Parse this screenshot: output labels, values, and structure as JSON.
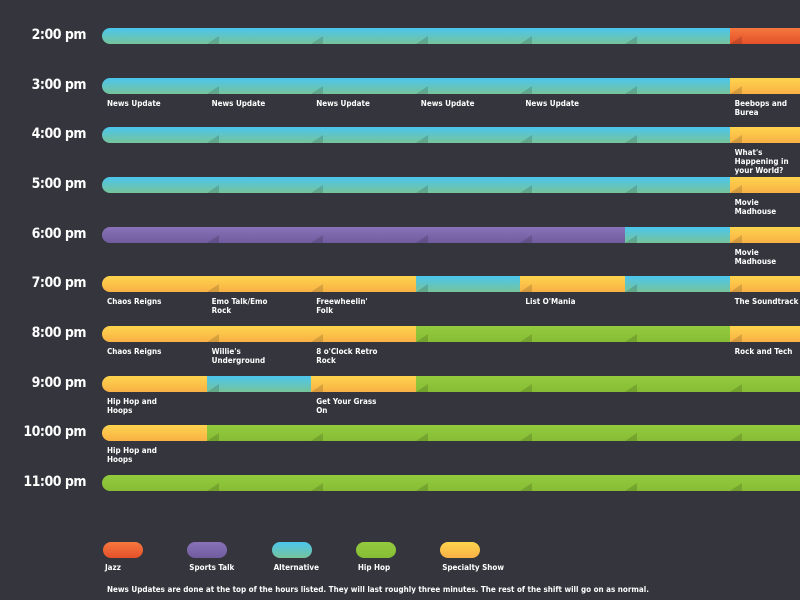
{
  "schedule": {
    "legend": [
      {
        "name": "Jazz",
        "colors": [
          "#f6783e",
          "#e4502a"
        ]
      },
      {
        "name": "Sports Talk",
        "colors": [
          "#8a72b8",
          "#6f5c9e"
        ]
      },
      {
        "name": "Alternative",
        "colors": [
          "#4cc6ee",
          "#76c49a"
        ]
      },
      {
        "name": "Hip Hop",
        "colors": [
          "#93cb3e",
          "#86bd35"
        ]
      },
      {
        "name": "Specialty Show",
        "colors": [
          "#ffd44e",
          "#f8b145"
        ]
      }
    ],
    "rows": [
      {
        "time": "2:00 pm",
        "slots": [
          {
            "genre": "Alternative"
          },
          {
            "genre": "Alternative"
          },
          {
            "genre": "Alternative"
          },
          {
            "genre": "Alternative"
          },
          {
            "genre": "Alternative"
          },
          {
            "genre": "Alternative"
          },
          {
            "genre": "Jazz"
          }
        ]
      },
      {
        "time": "3:00 pm",
        "slots": [
          {
            "genre": "Alternative",
            "label": "News Update"
          },
          {
            "genre": "Alternative",
            "label": "News Update"
          },
          {
            "genre": "Alternative",
            "label": "News Update"
          },
          {
            "genre": "Alternative",
            "label": "News Update"
          },
          {
            "genre": "Alternative",
            "label": "News Update"
          },
          {
            "genre": "Alternative"
          },
          {
            "genre": "Specialty Show",
            "label": "Beebops and Burea"
          }
        ]
      },
      {
        "time": "4:00 pm",
        "slots": [
          {
            "genre": "Alternative"
          },
          {
            "genre": "Alternative"
          },
          {
            "genre": "Alternative"
          },
          {
            "genre": "Alternative"
          },
          {
            "genre": "Alternative"
          },
          {
            "genre": "Alternative"
          },
          {
            "genre": "Specialty Show",
            "label": "What's Happening in your World?"
          }
        ]
      },
      {
        "time": "5:00 pm",
        "slots": [
          {
            "genre": "Alternative"
          },
          {
            "genre": "Alternative"
          },
          {
            "genre": "Alternative"
          },
          {
            "genre": "Alternative"
          },
          {
            "genre": "Alternative"
          },
          {
            "genre": "Alternative"
          },
          {
            "genre": "Specialty Show",
            "label": "Movie Madhouse"
          }
        ]
      },
      {
        "time": "6:00 pm",
        "slots": [
          {
            "genre": "Sports Talk"
          },
          {
            "genre": "Sports Talk"
          },
          {
            "genre": "Sports Talk"
          },
          {
            "genre": "Sports Talk"
          },
          {
            "genre": "Sports Talk"
          },
          {
            "genre": "Alternative"
          },
          {
            "genre": "Specialty Show",
            "label": "Movie Madhouse"
          }
        ]
      },
      {
        "time": "7:00 pm",
        "slots": [
          {
            "genre": "Specialty Show",
            "label": "Chaos Reigns"
          },
          {
            "genre": "Specialty Show",
            "label": "Emo Talk/Emo Rock"
          },
          {
            "genre": "Specialty Show",
            "label": "Freewheelin' Folk"
          },
          {
            "genre": "Alternative"
          },
          {
            "genre": "Specialty Show",
            "label": "List O'Mania"
          },
          {
            "genre": "Alternative"
          },
          {
            "genre": "Specialty Show",
            "label": "The Soundtrack"
          }
        ]
      },
      {
        "time": "8:00 pm",
        "slots": [
          {
            "genre": "Specialty Show",
            "label": "Chaos Reigns"
          },
          {
            "genre": "Specialty Show",
            "label": "Willie's Underground"
          },
          {
            "genre": "Specialty Show",
            "label": "8 o'Clock Retro Rock"
          },
          {
            "genre": "Hip Hop"
          },
          {
            "genre": "Hip Hop"
          },
          {
            "genre": "Hip Hop"
          },
          {
            "genre": "Specialty Show",
            "label": "Rock and Tech"
          }
        ]
      },
      {
        "time": "9:00 pm",
        "slots": [
          {
            "genre": "Specialty Show",
            "label": "Hip Hop and Hoops"
          },
          {
            "genre": "Alternative"
          },
          {
            "genre": "Specialty Show",
            "label": "Get Your Grass On"
          },
          {
            "genre": "Hip Hop"
          },
          {
            "genre": "Hip Hop"
          },
          {
            "genre": "Hip Hop"
          },
          {
            "genre": "Hip Hop"
          }
        ]
      },
      {
        "time": "10:00 pm",
        "slots": [
          {
            "genre": "Specialty Show",
            "label": "Hip Hop and Hoops"
          },
          {
            "genre": "Hip Hop"
          },
          {
            "genre": "Hip Hop"
          },
          {
            "genre": "Hip Hop"
          },
          {
            "genre": "Hip Hop"
          },
          {
            "genre": "Hip Hop"
          },
          {
            "genre": "Hip Hop"
          }
        ]
      },
      {
        "time": "11:00 pm",
        "slots": [
          {
            "genre": "Hip Hop"
          },
          {
            "genre": "Hip Hop"
          },
          {
            "genre": "Hip Hop"
          },
          {
            "genre": "Hip Hop"
          },
          {
            "genre": "Hip Hop"
          },
          {
            "genre": "Hip Hop"
          },
          {
            "genre": "Hip Hop"
          }
        ]
      }
    ],
    "footer": "News Updates are done at the top of the hours listed. They will last roughly three minutes. The rest of the shift will go on as normal."
  }
}
